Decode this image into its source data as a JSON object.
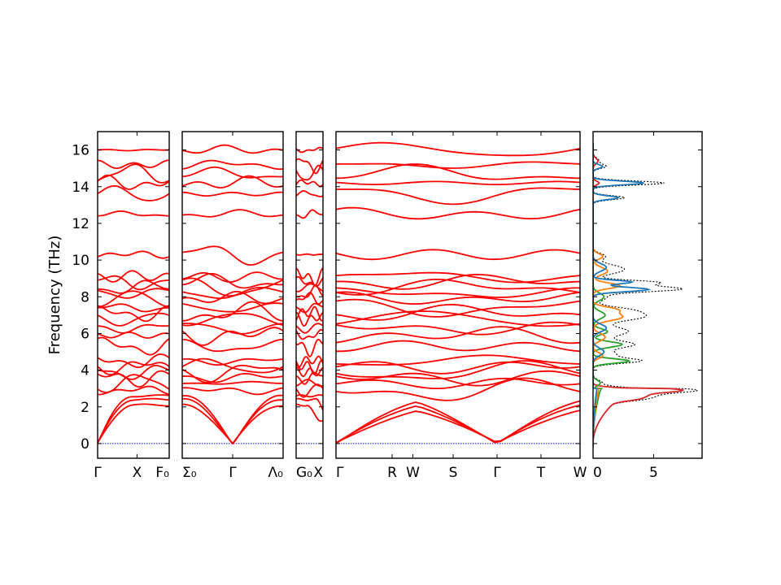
{
  "chart_data": {
    "type": "line",
    "ylabel": "Frequency (THz)",
    "ylim": [
      -0.8,
      17.0
    ],
    "yticks": [
      0,
      2,
      4,
      6,
      8,
      10,
      12,
      14,
      16
    ],
    "colors": {
      "bands": "#ff0000",
      "zero_line": "#0000cc",
      "dos_total": "#000000",
      "dos_1": "#1f77b4",
      "dos_2": "#ff7f0e",
      "dos_3": "#2ca02c",
      "dos_4": "#d62728"
    },
    "segments": [
      {
        "xticks": [
          "Γ",
          "X",
          "F₀"
        ],
        "tick_positions": [
          0.0,
          0.55,
          1.0
        ]
      },
      {
        "xticks": [
          "Σ₀",
          "Γ",
          "Λ₀"
        ],
        "tick_positions": [
          0.0,
          0.5,
          1.0
        ]
      },
      {
        "xticks": [
          "G₀",
          "X"
        ],
        "tick_positions": [
          0.0,
          1.0
        ]
      },
      {
        "xticks": [
          "Γ",
          "R",
          "W",
          "S",
          "Γ",
          "T",
          "W"
        ],
        "tick_positions": [
          0.0,
          0.23,
          0.315,
          0.48,
          0.66,
          0.84,
          1.0
        ]
      }
    ],
    "dos_panel": {
      "xlim": [
        0,
        9
      ],
      "xticks": [
        0,
        5
      ]
    }
  }
}
